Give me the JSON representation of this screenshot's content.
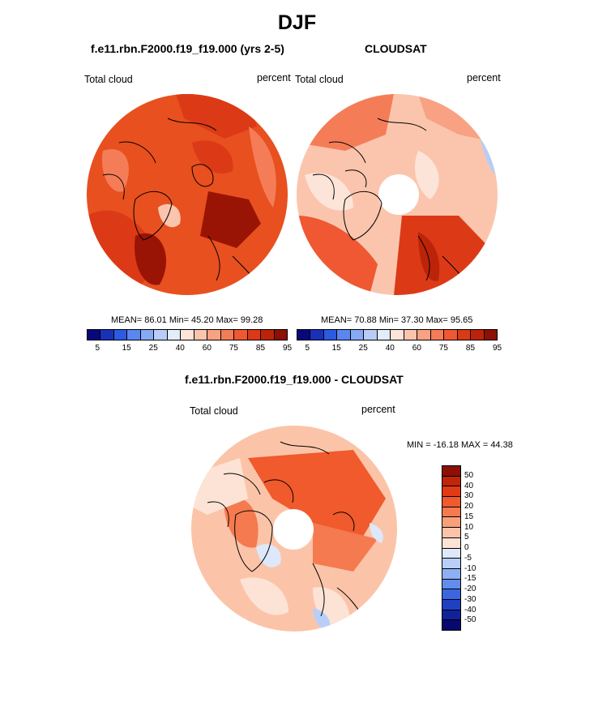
{
  "title": "DJF",
  "panels": {
    "model": {
      "title": "f.e11.rbn.F2000.f19_f19.000 (yrs 2-5)",
      "left_label": "Total cloud",
      "right_label": "percent",
      "stats": "MEAN=  86.01  Min=  45.20  Max=  99.28"
    },
    "obs": {
      "title": "CLOUDSAT",
      "left_label": "Total cloud",
      "right_label": "percent",
      "stats": "MEAN=  70.88  Min=  37.30  Max=  95.65"
    },
    "diff": {
      "title": "f.e11.rbn.F2000.f19_f19.000 - CLOUDSAT",
      "left_label": "Total cloud",
      "right_label": "percent",
      "minmax": "MIN = -16.18 MAX =  44.38"
    }
  },
  "colorbar_top": {
    "ticks": [
      "5",
      "15",
      "25",
      "40",
      "60",
      "75",
      "85",
      "95"
    ],
    "colors": [
      "#08087a",
      "#1a30b8",
      "#2c5ae0",
      "#5a86f0",
      "#87aaf5",
      "#b7cdf8",
      "#e3ecfa",
      "#fde4d8",
      "#fbc5ad",
      "#f8a283",
      "#f47d58",
      "#ef5832",
      "#dc3a17",
      "#bc2409",
      "#8c1004"
    ]
  },
  "colorbar_diff": {
    "ticks": [
      "50",
      "40",
      "30",
      "20",
      "15",
      "10",
      "5",
      "0",
      "-5",
      "-10",
      "-15",
      "-20",
      "-30",
      "-40",
      "-50"
    ],
    "colors": [
      "#8c1004",
      "#c0250a",
      "#e03b14",
      "#f05a2c",
      "#f57a50",
      "#f8a07c",
      "#fbc4a8",
      "#fde3d5",
      "#dde8fa",
      "#b9cff7",
      "#8eb0f3",
      "#628ded",
      "#3a66e0",
      "#2040c2",
      "#10229a",
      "#08086e"
    ]
  }
}
